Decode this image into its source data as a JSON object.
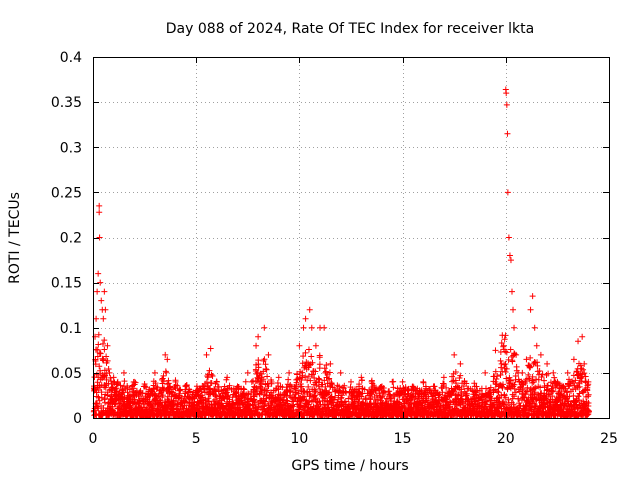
{
  "chart_data": {
    "type": "scatter",
    "title": "Day 088 of 2024, Rate Of TEC Index for receiver lkta",
    "xlabel": "GPS time / hours",
    "ylabel": "ROTI / TECUs",
    "xlim": [
      0,
      25
    ],
    "ylim": [
      0,
      0.4
    ],
    "xticks": [
      0,
      5,
      10,
      15,
      20,
      25
    ],
    "xtick_labels": [
      "0",
      "5",
      "10",
      "15",
      "20",
      "25"
    ],
    "yticks": [
      0,
      0.05,
      0.1,
      0.15,
      0.2,
      0.25,
      0.3,
      0.35,
      0.4
    ],
    "ytick_labels": [
      "0",
      "0.05",
      "0.1",
      "0.15",
      "0.2",
      "0.25",
      "0.3",
      "0.35",
      "0.4"
    ],
    "grid": true,
    "marker": "plus",
    "color": "#ff0000",
    "series": [
      {
        "name": "ROTI",
        "x": [
          0.05,
          0.1,
          0.15,
          0.2,
          0.25,
          0.3,
          0.3,
          0.32,
          0.35,
          0.4,
          0.45,
          0.5,
          0.55,
          0.6,
          0.7,
          0.8,
          1.0,
          1.2,
          1.5,
          2.0,
          2.5,
          3.0,
          3.5,
          3.6,
          4.0,
          4.5,
          5.0,
          5.5,
          5.7,
          6.0,
          6.5,
          7.0,
          7.5,
          7.9,
          8.0,
          8.3,
          8.5,
          9.0,
          9.5,
          10.0,
          10.2,
          10.3,
          10.5,
          10.6,
          10.8,
          11.0,
          11.2,
          11.5,
          12.0,
          12.5,
          13.0,
          13.5,
          14.0,
          14.5,
          15.0,
          15.5,
          16.0,
          16.5,
          17.0,
          17.5,
          17.8,
          18.0,
          18.5,
          19.0,
          19.5,
          19.8,
          19.9,
          20.0,
          20.02,
          20.05,
          20.08,
          20.1,
          20.15,
          20.2,
          20.25,
          20.3,
          20.35,
          20.4,
          20.5,
          20.6,
          20.8,
          21.0,
          21.2,
          21.3,
          21.4,
          21.5,
          21.7,
          22.0,
          22.3,
          22.5,
          22.8,
          23.0,
          23.3,
          23.5,
          23.7,
          23.8,
          24.0
        ],
        "y": [
          0.03,
          0.09,
          0.11,
          0.14,
          0.16,
          0.235,
          0.228,
          0.2,
          0.15,
          0.13,
          0.12,
          0.11,
          0.14,
          0.12,
          0.08,
          0.05,
          0.045,
          0.04,
          0.05,
          0.04,
          0.035,
          0.05,
          0.07,
          0.065,
          0.04,
          0.035,
          0.03,
          0.07,
          0.077,
          0.04,
          0.045,
          0.035,
          0.05,
          0.08,
          0.09,
          0.1,
          0.07,
          0.045,
          0.05,
          0.08,
          0.1,
          0.11,
          0.12,
          0.1,
          0.08,
          0.1,
          0.1,
          0.06,
          0.05,
          0.04,
          0.045,
          0.04,
          0.035,
          0.04,
          0.04,
          0.035,
          0.04,
          0.035,
          0.045,
          0.07,
          0.06,
          0.04,
          0.035,
          0.05,
          0.075,
          0.06,
          0.08,
          0.364,
          0.36,
          0.347,
          0.315,
          0.25,
          0.2,
          0.18,
          0.175,
          0.14,
          0.12,
          0.1,
          0.07,
          0.05,
          0.05,
          0.065,
          0.12,
          0.135,
          0.1,
          0.08,
          0.07,
          0.06,
          0.05,
          0.04,
          0.035,
          0.05,
          0.065,
          0.085,
          0.09,
          0.06,
          0.04
        ]
      }
    ]
  }
}
